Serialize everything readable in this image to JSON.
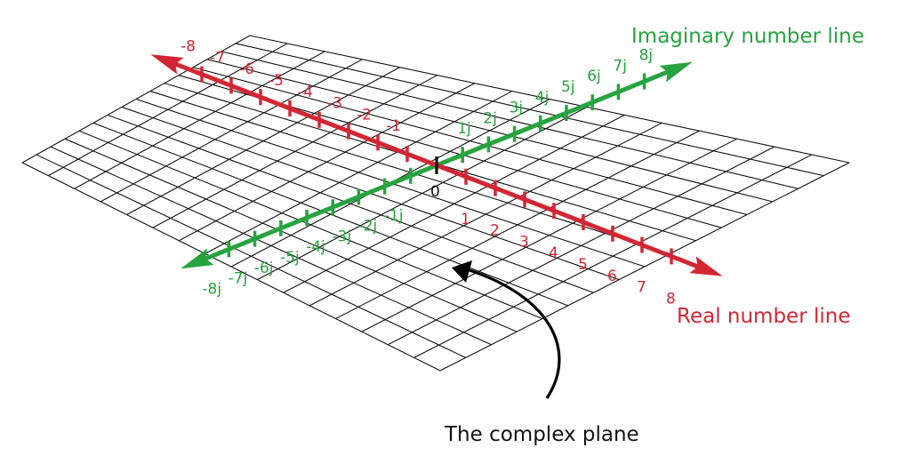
{
  "labels": {
    "imaginary_axis": "Imaginary number line",
    "real_axis": "Real number line",
    "plane": "The complex plane",
    "origin": "0"
  },
  "real_ticks": [
    {
      "value": -8,
      "label": "-8"
    },
    {
      "value": -7,
      "label": "-7"
    },
    {
      "value": -6,
      "label": "-6"
    },
    {
      "value": -5,
      "label": "-5"
    },
    {
      "value": -4,
      "label": "-4"
    },
    {
      "value": -3,
      "label": "-3"
    },
    {
      "value": -2,
      "label": "-2"
    },
    {
      "value": -1,
      "label": "-1"
    },
    {
      "value": 1,
      "label": "1"
    },
    {
      "value": 2,
      "label": "2"
    },
    {
      "value": 3,
      "label": "3"
    },
    {
      "value": 4,
      "label": "4"
    },
    {
      "value": 5,
      "label": "5"
    },
    {
      "value": 6,
      "label": "6"
    },
    {
      "value": 7,
      "label": "7"
    },
    {
      "value": 8,
      "label": "8"
    }
  ],
  "imag_ticks": [
    {
      "value": -8,
      "label": "-8j"
    },
    {
      "value": -7,
      "label": "-7j"
    },
    {
      "value": -6,
      "label": "-6j"
    },
    {
      "value": -5,
      "label": "-5j"
    },
    {
      "value": -4,
      "label": "-4j"
    },
    {
      "value": -3,
      "label": "-3j"
    },
    {
      "value": -2,
      "label": "-2j"
    },
    {
      "value": -1,
      "label": "-1j"
    },
    {
      "value": 1,
      "label": "1j"
    },
    {
      "value": 2,
      "label": "2j"
    },
    {
      "value": 3,
      "label": "3j"
    },
    {
      "value": 4,
      "label": "4j"
    },
    {
      "value": 5,
      "label": "5j"
    },
    {
      "value": 6,
      "label": "6j"
    },
    {
      "value": 7,
      "label": "7j"
    },
    {
      "value": 8,
      "label": "8j"
    }
  ],
  "colors": {
    "real_axis": "#d32633",
    "imaginary_axis": "#27a33f",
    "grid": "#111111",
    "origin_tick": "#111111"
  }
}
